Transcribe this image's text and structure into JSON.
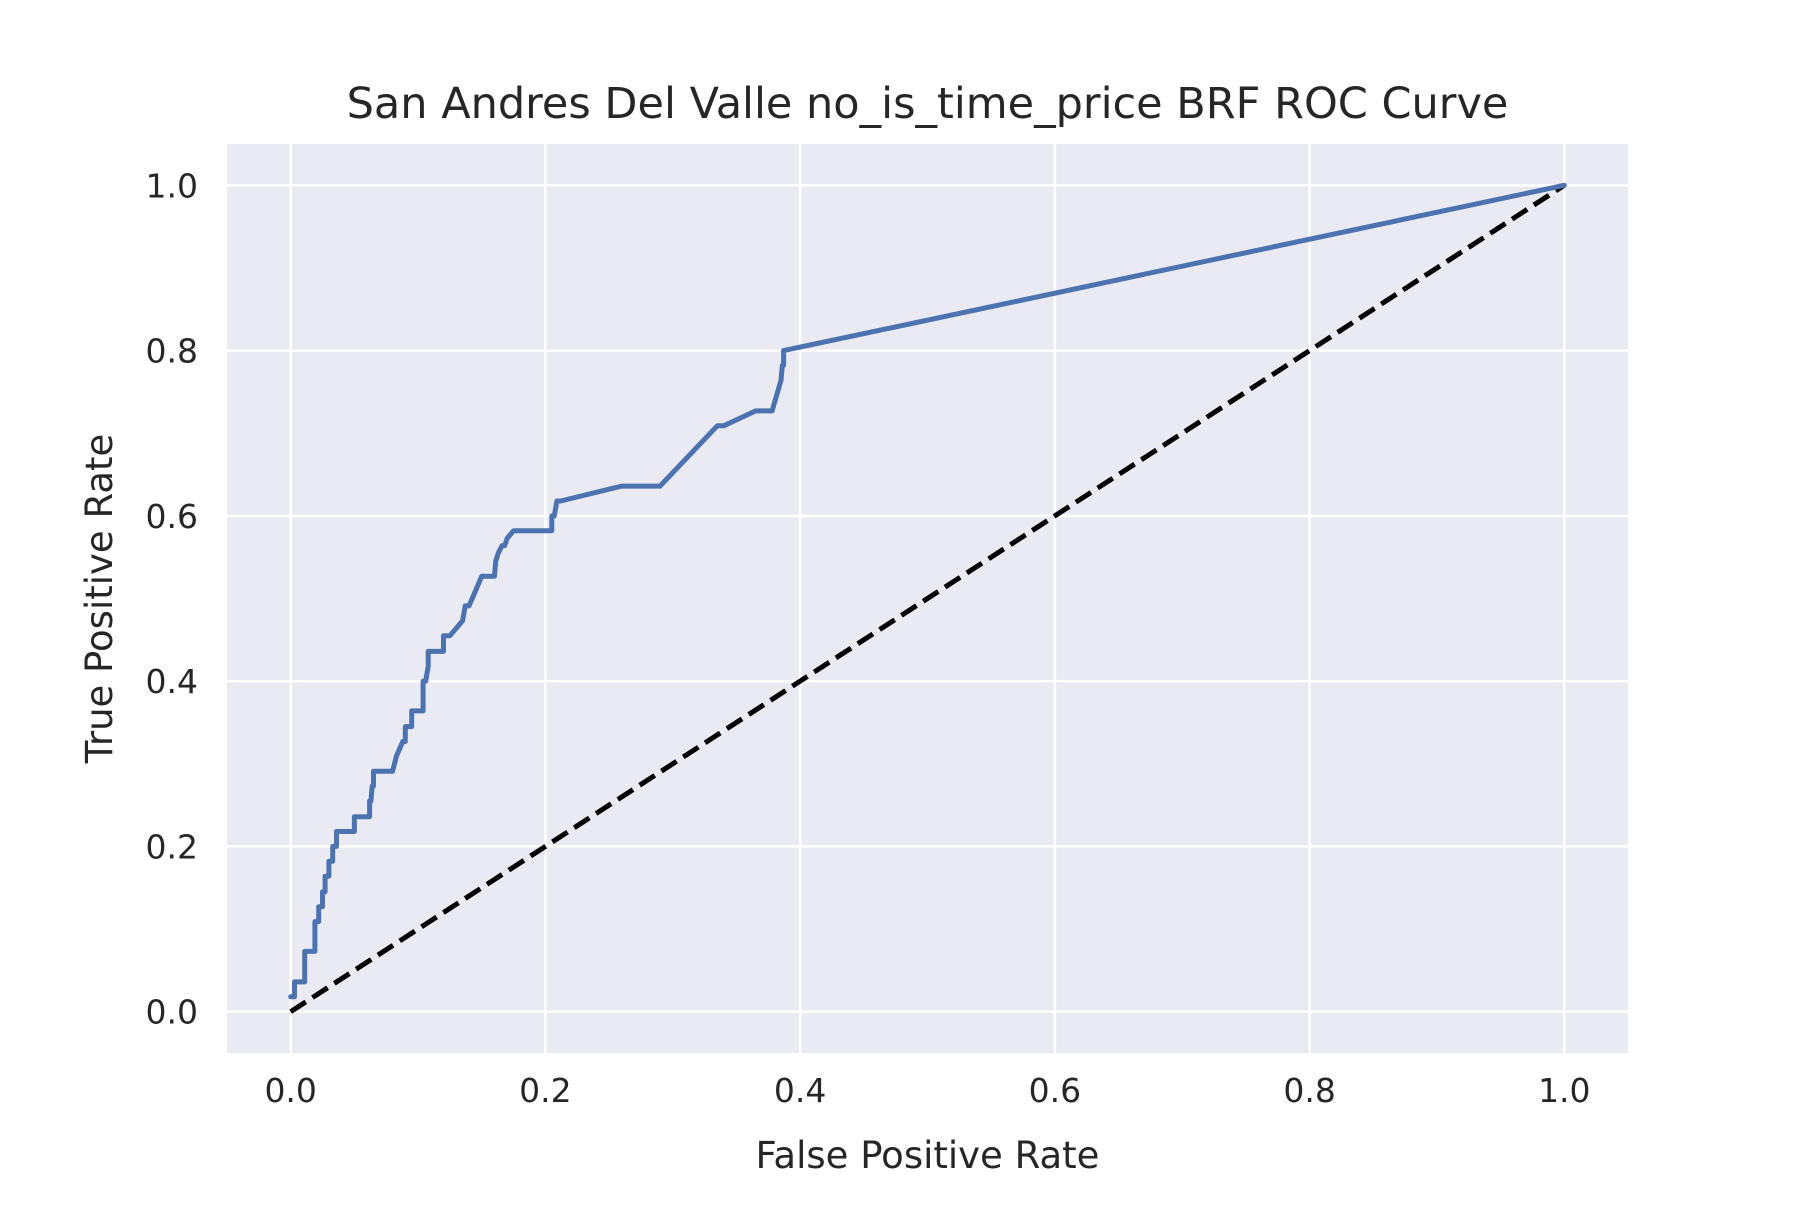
{
  "chart_data": {
    "type": "line",
    "title": "San Andres Del Valle no_is_time_price BRF ROC Curve",
    "xlabel": "False Positive Rate",
    "ylabel": "True Positive Rate",
    "xlim": [
      -0.05,
      1.05
    ],
    "ylim": [
      -0.05,
      1.05
    ],
    "xticks": [
      "0.0",
      "0.2",
      "0.4",
      "0.6",
      "0.8",
      "1.0"
    ],
    "yticks": [
      "0.0",
      "0.2",
      "0.4",
      "0.6",
      "0.8",
      "1.0"
    ],
    "grid": true,
    "legend": "none",
    "colors": {
      "background": "#EAEAF2",
      "grid": "#FFFFFF",
      "roc": "#4C72B0",
      "baseline": "#000000"
    },
    "series": [
      {
        "style": "solid",
        "x": [
          0.0,
          0.003,
          0.003,
          0.011,
          0.011,
          0.019,
          0.019,
          0.022,
          0.022,
          0.025,
          0.025,
          0.027,
          0.027,
          0.03,
          0.03,
          0.033,
          0.033,
          0.036,
          0.036,
          0.05,
          0.05,
          0.062,
          0.062,
          0.063,
          0.064,
          0.065,
          0.065,
          0.08,
          0.083,
          0.088,
          0.09,
          0.09,
          0.095,
          0.095,
          0.104,
          0.104,
          0.106,
          0.108,
          0.108,
          0.12,
          0.12,
          0.125,
          0.135,
          0.137,
          0.14,
          0.145,
          0.15,
          0.155,
          0.16,
          0.161,
          0.161,
          0.163,
          0.166,
          0.168,
          0.17,
          0.175,
          0.205,
          0.205,
          0.207,
          0.209,
          0.212,
          0.26,
          0.29,
          0.335,
          0.34,
          0.365,
          0.378,
          0.385,
          0.386,
          0.387,
          0.387,
          1.0
        ],
        "y": [
          0.018,
          0.018,
          0.036,
          0.036,
          0.073,
          0.073,
          0.109,
          0.109,
          0.127,
          0.127,
          0.145,
          0.145,
          0.164,
          0.164,
          0.182,
          0.182,
          0.2,
          0.2,
          0.218,
          0.218,
          0.236,
          0.236,
          0.255,
          0.255,
          0.273,
          0.273,
          0.291,
          0.291,
          0.309,
          0.327,
          0.327,
          0.345,
          0.345,
          0.364,
          0.364,
          0.4,
          0.4,
          0.418,
          0.436,
          0.436,
          0.455,
          0.455,
          0.473,
          0.491,
          0.491,
          0.509,
          0.527,
          0.527,
          0.527,
          0.545,
          0.545,
          0.555,
          0.564,
          0.564,
          0.573,
          0.582,
          0.582,
          0.6,
          0.6,
          0.618,
          0.618,
          0.636,
          0.636,
          0.709,
          0.709,
          0.727,
          0.727,
          0.764,
          0.782,
          0.782,
          0.8,
          1.0
        ]
      },
      {
        "style": "dashed",
        "x": [
          0.0,
          1.0
        ],
        "y": [
          0.0,
          1.0
        ]
      }
    ]
  }
}
